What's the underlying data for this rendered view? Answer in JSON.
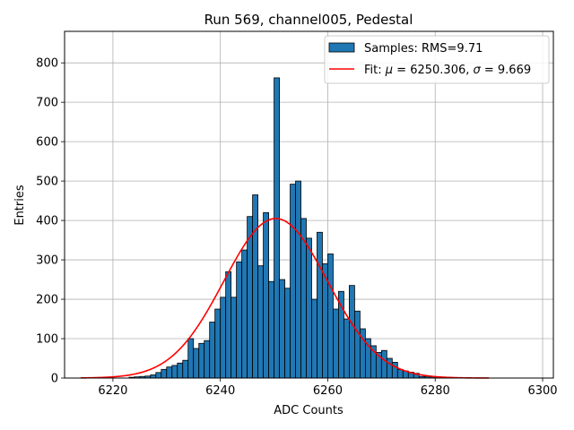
{
  "chart_data": {
    "type": "bar",
    "title": "Run 569, channel005, Pedestal",
    "xlabel": "ADC Counts",
    "ylabel": "Entries",
    "xlim": [
      6211,
      6302
    ],
    "ylim": [
      0,
      880
    ],
    "xticks": [
      6220,
      6240,
      6260,
      6280,
      6300
    ],
    "yticks": [
      0,
      100,
      200,
      300,
      400,
      500,
      600,
      700,
      800
    ],
    "grid": true,
    "legend_position": "top-right",
    "colors": {
      "bars": "#1f77b4",
      "bar_edge": "#000000",
      "fit": "#ff0000",
      "grid": "#b0b0b0"
    },
    "histogram": {
      "name": "Samples: RMS=9.71",
      "bin_start": 6214,
      "bin_width": 1,
      "counts": [
        0,
        0,
        0,
        0,
        0,
        0,
        0,
        0,
        0,
        2,
        3,
        4,
        5,
        8,
        14,
        22,
        28,
        32,
        38,
        45,
        100,
        75,
        88,
        95,
        142,
        175,
        205,
        270,
        205,
        295,
        325,
        410,
        465,
        285,
        420,
        245,
        762,
        250,
        228,
        492,
        500,
        405,
        355,
        200,
        370,
        290,
        315,
        175,
        220,
        150,
        235,
        170,
        125,
        100,
        82,
        65,
        70,
        50,
        40,
        22,
        18,
        15,
        12,
        4,
        4,
        3,
        3,
        2,
        2,
        1,
        1
      ]
    },
    "fit": {
      "name_prefix": "Fit: ",
      "mu_label": "μ",
      "mu_value": " = 6250.306, ",
      "sigma_label": "σ",
      "sigma_value": " = 9.669",
      "mu": 6250.306,
      "sigma": 9.669,
      "amplitude": 405,
      "x_range": [
        6214,
        6290
      ]
    }
  }
}
